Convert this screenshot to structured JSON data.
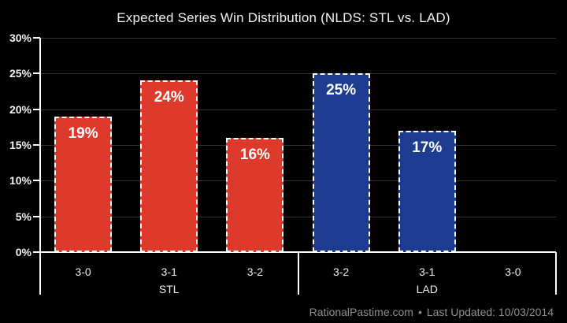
{
  "title": "Expected Series Win Distribution (NLDS: STL vs. LAD)",
  "footer": {
    "site": "RationalPastime.com",
    "separator": "•",
    "last_updated": "Last Updated: 10/03/2014"
  },
  "colors": {
    "background": "#000000",
    "stl_bar": "#de3a2b",
    "lad_bar": "#1d3c8f",
    "bar_border": "#ffffff",
    "gridline": "#333333",
    "axis": "#ffffff",
    "bar_label_text": "#ffffff",
    "tick_label_text": "#f2f2f2",
    "footer_text": "#8f8f8f"
  },
  "chart_data": {
    "type": "bar",
    "title": "Expected Series Win Distribution (NLDS: STL vs. LAD)",
    "xlabel": "",
    "ylabel": "",
    "ylim": [
      0,
      30
    ],
    "yticks": [
      0,
      5,
      10,
      15,
      20,
      25,
      30
    ],
    "ytick_labels": [
      "0%",
      "5%",
      "10%",
      "15%",
      "20%",
      "25%",
      "30%"
    ],
    "grid": true,
    "legend_position": "none",
    "categories": [
      "3-0",
      "3-1",
      "3-2",
      "3-2",
      "3-1",
      "3-0"
    ],
    "values": [
      19,
      24,
      16,
      25,
      17,
      0
    ],
    "bar_labels": [
      "19%",
      "24%",
      "16%",
      "25%",
      "17%",
      ""
    ],
    "groups": [
      {
        "label": "STL",
        "color": "#de3a2b",
        "bar_indices": [
          0,
          1,
          2
        ]
      },
      {
        "label": "LAD",
        "color": "#1d3c8f",
        "bar_indices": [
          3,
          4,
          5
        ]
      }
    ]
  }
}
